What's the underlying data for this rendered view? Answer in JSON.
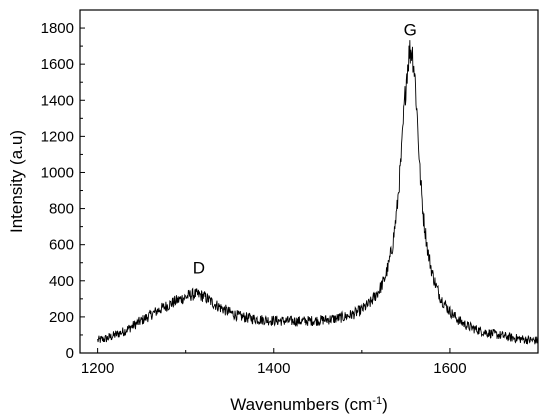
{
  "chart_data": {
    "type": "line",
    "title": "",
    "xlabel": "Wavenumbers (cm",
    "xlabel_superscript": "-1",
    "xlabel_suffix": ")",
    "ylabel": "Intensity (a.u)",
    "xlim": [
      1180,
      1700
    ],
    "ylim": [
      0,
      1900
    ],
    "x_ticks": [
      1200,
      1400,
      1600
    ],
    "y_ticks": [
      0,
      200,
      400,
      600,
      800,
      1000,
      1200,
      1400,
      1600,
      1800
    ],
    "grid": false,
    "legend": "none",
    "line_color": "#000000",
    "annotations": [
      {
        "text": "D",
        "x": 1315,
        "y": 440
      },
      {
        "text": "G",
        "x": 1555,
        "y": 1760
      }
    ],
    "series": [
      {
        "x": [
          1200,
          1210,
          1220,
          1230,
          1240,
          1250,
          1260,
          1270,
          1280,
          1290,
          1300,
          1305,
          1310,
          1315,
          1320,
          1325,
          1330,
          1340,
          1350,
          1360,
          1370,
          1380,
          1390,
          1400,
          1410,
          1420,
          1430,
          1440,
          1450,
          1460,
          1470,
          1480,
          1490,
          1500,
          1510,
          1520,
          1525,
          1530,
          1535,
          1540,
          1545,
          1548,
          1551,
          1554,
          1557,
          1560,
          1563,
          1566,
          1570,
          1575,
          1580,
          1585,
          1590,
          1600,
          1610,
          1620,
          1630,
          1640,
          1650,
          1660,
          1670,
          1680,
          1690,
          1700
        ],
        "values": [
          70,
          80,
          100,
          120,
          150,
          180,
          210,
          240,
          265,
          290,
          310,
          320,
          325,
          322,
          315,
          300,
          280,
          250,
          225,
          205,
          195,
          188,
          183,
          180,
          178,
          177,
          176,
          178,
          180,
          185,
          190,
          200,
          215,
          240,
          280,
          350,
          400,
          480,
          600,
          800,
          1100,
          1350,
          1550,
          1670,
          1680,
          1550,
          1300,
          1000,
          750,
          560,
          440,
          360,
          300,
          230,
          180,
          150,
          130,
          115,
          105,
          95,
          85,
          78,
          72,
          68
        ]
      }
    ]
  }
}
